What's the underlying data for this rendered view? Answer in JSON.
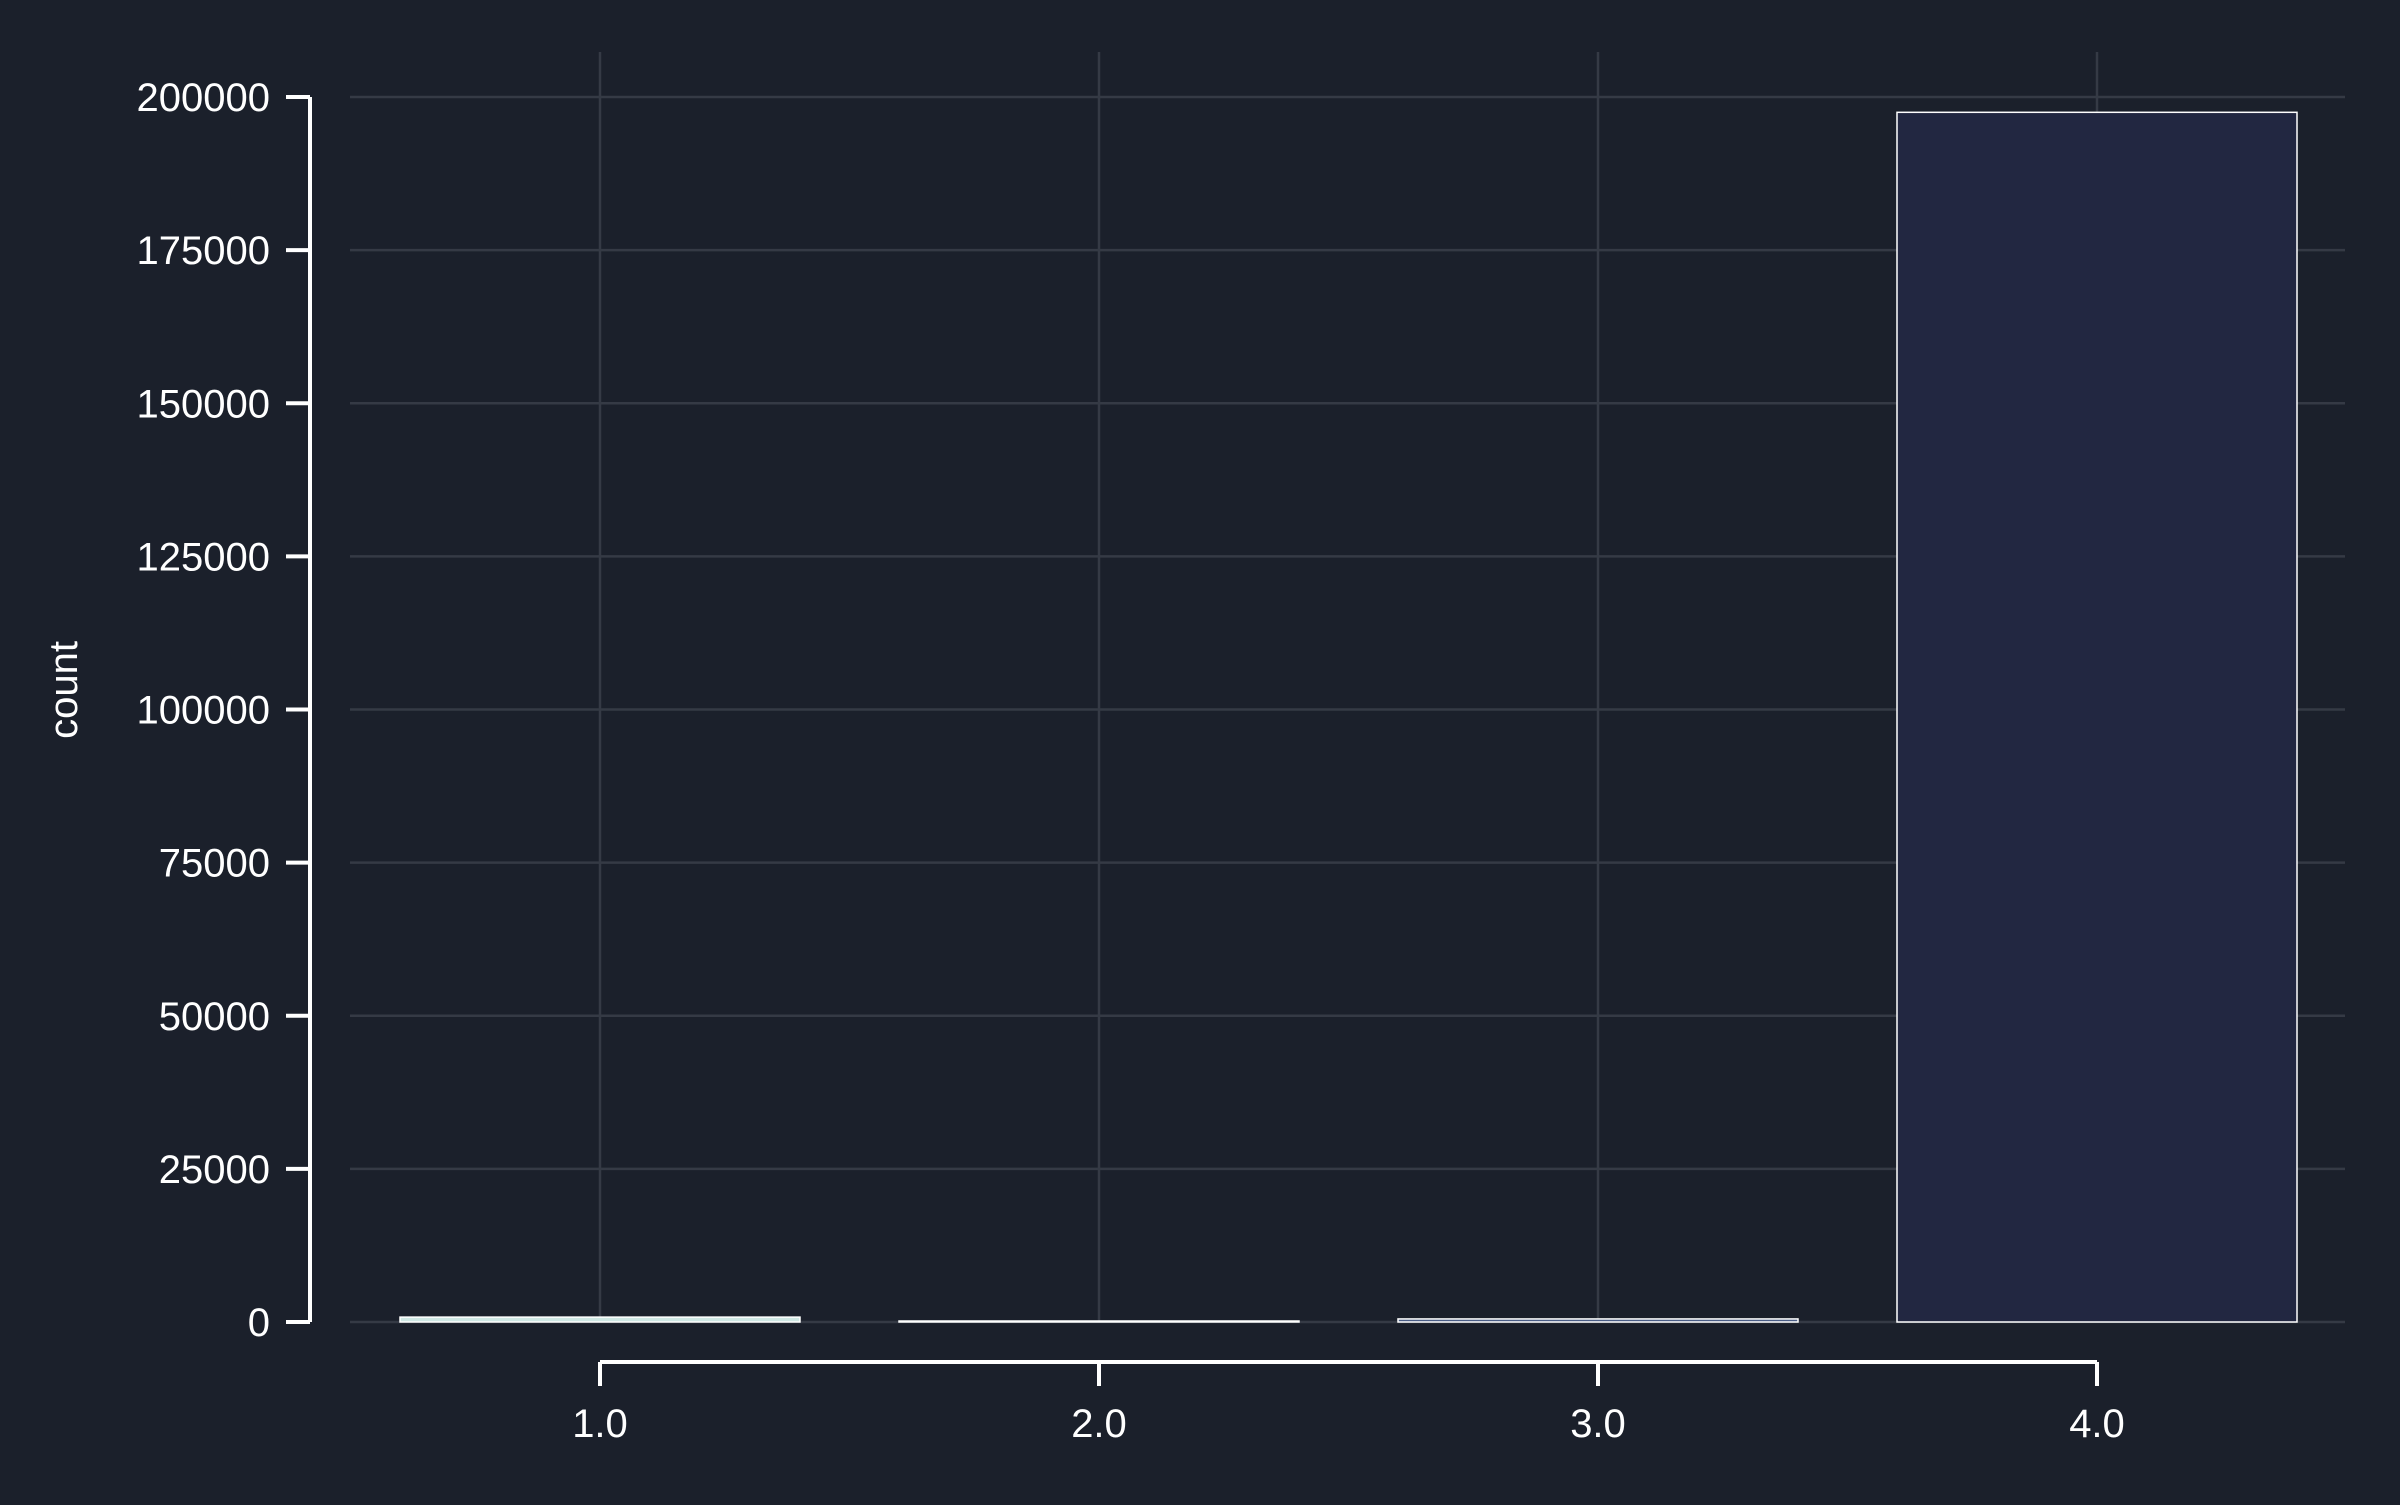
{
  "chart_data": {
    "type": "bar",
    "categories": [
      "1.0",
      "2.0",
      "3.0",
      "4.0"
    ],
    "values": [
      800,
      150,
      500,
      197500
    ],
    "title": "",
    "xlabel": "",
    "ylabel": "count",
    "ylim": [
      0,
      200000
    ],
    "yticks": [
      "0",
      "25000",
      "50000",
      "75000",
      "100000",
      "125000",
      "150000",
      "175000",
      "200000"
    ],
    "grid": true,
    "colors": {
      "background": "#1b202b",
      "axis": "#ffffff",
      "grid": "#353a45",
      "bars": [
        "#cfe8e4",
        "#6b8fa8",
        "#4a5d86",
        "#222741"
      ],
      "bar_edge": "#ffffff"
    }
  }
}
